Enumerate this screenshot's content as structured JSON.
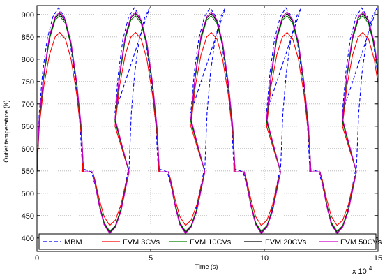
{
  "chart_data": {
    "type": "line",
    "title": "",
    "xlabel": "Time (s)",
    "ylabel": "Outlet temperature (K)",
    "x_multiplier_label": "x 10",
    "x_multiplier_exponent": "4",
    "xlim": [
      0,
      15
    ],
    "ylim": [
      370,
      920
    ],
    "xticks": [
      0,
      5,
      10,
      15
    ],
    "yticks": [
      400,
      450,
      500,
      550,
      600,
      650,
      700,
      750,
      800,
      850,
      900
    ],
    "grid": true,
    "grid_style": "dotted",
    "legend_position": "bottom",
    "legend_orientation": "horizontal",
    "cycle_period": 3.333,
    "num_cycles": 4.5,
    "series": [
      {
        "name": "MBM",
        "color": "#0000ff",
        "dash": true,
        "points": [
          [
            0.0,
            555
          ],
          [
            0.1,
            680
          ],
          [
            0.25,
            770
          ],
          [
            0.45,
            845
          ],
          [
            0.7,
            895
          ],
          [
            0.95,
            915
          ],
          [
            1.2,
            895
          ],
          [
            1.45,
            840
          ],
          [
            1.7,
            750
          ],
          [
            1.9,
            650
          ],
          [
            2.0,
            555
          ],
          [
            2.4,
            548
          ],
          [
            2.55,
            520
          ],
          [
            2.75,
            470
          ],
          [
            2.95,
            430
          ],
          [
            3.2,
            410
          ],
          [
            3.45,
            425
          ],
          [
            3.65,
            460
          ],
          [
            3.85,
            510
          ],
          [
            4.0,
            548
          ],
          [
            4.05,
            555
          ],
          [
            4.15,
            680
          ],
          [
            4.3,
            770
          ],
          [
            4.5,
            845
          ],
          [
            4.75,
            895
          ],
          [
            4.95,
            915
          ]
        ]
      },
      {
        "name": "FVM 3CVs",
        "color": "#ff0000",
        "dash": false,
        "points": [
          [
            0.0,
            548
          ],
          [
            0.1,
            650
          ],
          [
            0.3,
            740
          ],
          [
            0.55,
            810
          ],
          [
            0.8,
            850
          ],
          [
            1.0,
            860
          ],
          [
            1.25,
            845
          ],
          [
            1.5,
            800
          ],
          [
            1.75,
            720
          ],
          [
            1.95,
            630
          ],
          [
            2.05,
            548
          ],
          [
            2.2,
            548
          ],
          [
            2.45,
            548
          ],
          [
            2.55,
            530
          ],
          [
            2.75,
            485
          ],
          [
            2.95,
            448
          ],
          [
            3.2,
            428
          ],
          [
            3.45,
            440
          ],
          [
            3.7,
            475
          ],
          [
            3.9,
            520
          ],
          [
            4.05,
            548
          ]
        ]
      },
      {
        "name": "FVM 10CVs",
        "color": "#008000",
        "dash": false,
        "points": [
          [
            0.0,
            548
          ],
          [
            0.1,
            660
          ],
          [
            0.3,
            760
          ],
          [
            0.55,
            845
          ],
          [
            0.8,
            888
          ],
          [
            1.0,
            897
          ],
          [
            1.25,
            880
          ],
          [
            1.5,
            830
          ],
          [
            1.75,
            740
          ],
          [
            1.95,
            640
          ],
          [
            2.05,
            548
          ],
          [
            2.45,
            548
          ],
          [
            2.55,
            525
          ],
          [
            2.75,
            475
          ],
          [
            2.95,
            435
          ],
          [
            3.2,
            415
          ],
          [
            3.45,
            428
          ],
          [
            3.7,
            465
          ],
          [
            3.9,
            515
          ],
          [
            4.05,
            548
          ]
        ]
      },
      {
        "name": "FVM 20CVs",
        "color": "#000000",
        "dash": false,
        "points": [
          [
            0.0,
            548
          ],
          [
            0.1,
            665
          ],
          [
            0.3,
            765
          ],
          [
            0.55,
            850
          ],
          [
            0.8,
            892
          ],
          [
            1.0,
            902
          ],
          [
            1.25,
            885
          ],
          [
            1.5,
            835
          ],
          [
            1.75,
            745
          ],
          [
            1.95,
            645
          ],
          [
            2.05,
            548
          ],
          [
            2.45,
            548
          ],
          [
            2.55,
            523
          ],
          [
            2.75,
            472
          ],
          [
            2.95,
            432
          ],
          [
            3.2,
            412
          ],
          [
            3.45,
            426
          ],
          [
            3.7,
            462
          ],
          [
            3.9,
            512
          ],
          [
            4.05,
            548
          ]
        ]
      },
      {
        "name": "FVM 50CVs",
        "color": "#cc00cc",
        "dash": false,
        "points": [
          [
            0.0,
            548
          ],
          [
            0.1,
            668
          ],
          [
            0.3,
            768
          ],
          [
            0.55,
            853
          ],
          [
            0.8,
            895
          ],
          [
            1.0,
            906
          ],
          [
            1.25,
            888
          ],
          [
            1.5,
            838
          ],
          [
            1.75,
            748
          ],
          [
            1.95,
            648
          ],
          [
            2.05,
            548
          ],
          [
            2.45,
            548
          ],
          [
            2.55,
            522
          ],
          [
            2.75,
            470
          ],
          [
            2.95,
            430
          ],
          [
            3.2,
            410
          ],
          [
            3.45,
            424
          ],
          [
            3.7,
            460
          ],
          [
            3.9,
            510
          ],
          [
            4.05,
            548
          ]
        ]
      }
    ],
    "annotations": [
      {
        "type": "spike",
        "x": 2.0,
        "y_from": 548,
        "y_to": 568,
        "color": "#ff0000"
      },
      {
        "type": "spike",
        "x": 5.333,
        "y_from": 548,
        "y_to": 568,
        "color": "#ff0000"
      },
      {
        "type": "spike",
        "x": 8.667,
        "y_from": 548,
        "y_to": 568,
        "color": "#ff0000"
      },
      {
        "type": "spike",
        "x": 12.0,
        "y_from": 548,
        "y_to": 568,
        "color": "#ff0000"
      }
    ]
  }
}
